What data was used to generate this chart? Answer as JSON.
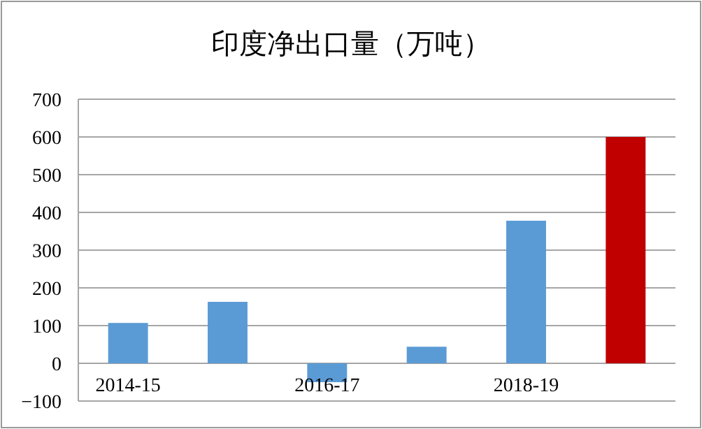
{
  "chart_data": {
    "type": "bar",
    "title": "印度净出口量（万吨）",
    "categories": [
      "2014-15",
      null,
      "2016-17",
      null,
      "2018-19",
      null
    ],
    "values": [
      107,
      163,
      -50,
      44,
      378,
      600
    ],
    "colors": [
      "#5b9bd5",
      "#5b9bd5",
      "#5b9bd5",
      "#5b9bd5",
      "#5b9bd5",
      "#c00000"
    ],
    "ylim": [
      -100,
      700
    ],
    "yticks": [
      -100,
      0,
      100,
      200,
      300,
      400,
      500,
      600,
      700
    ],
    "grid": "y"
  }
}
